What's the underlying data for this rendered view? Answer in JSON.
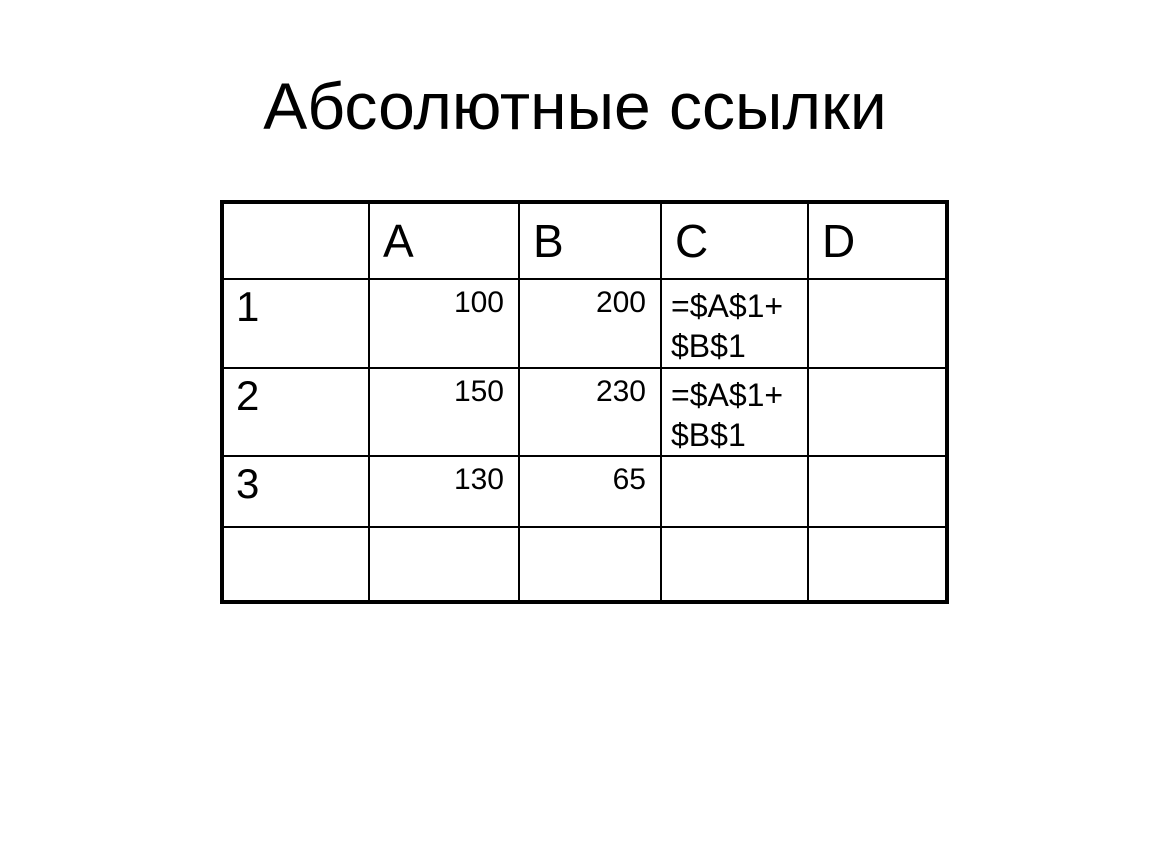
{
  "title": "Абсолютные ссылки",
  "colors": {
    "cell_pink": "#FF6699",
    "cell_yellow": "#FFFF00",
    "cell_green": "#99CC00",
    "border": "#000000",
    "background": "#FFFFFF",
    "text": "#000000"
  },
  "table": {
    "columns": [
      "",
      "A",
      "B",
      "C",
      "D"
    ],
    "rows": [
      {
        "label": "1",
        "cells": {
          "a": "100",
          "b": "200",
          "c": "=$A$1+\n$B$1",
          "d": ""
        }
      },
      {
        "label": "2",
        "cells": {
          "a": "150",
          "b": "230",
          "c": "=$A$1+\n$B$1",
          "d": ""
        }
      },
      {
        "label": "3",
        "cells": {
          "a": "130",
          "b": "65",
          "c": "",
          "d": ""
        }
      },
      {
        "label": "",
        "cells": {
          "a": "",
          "b": "",
          "c": "",
          "d": ""
        }
      }
    ]
  }
}
